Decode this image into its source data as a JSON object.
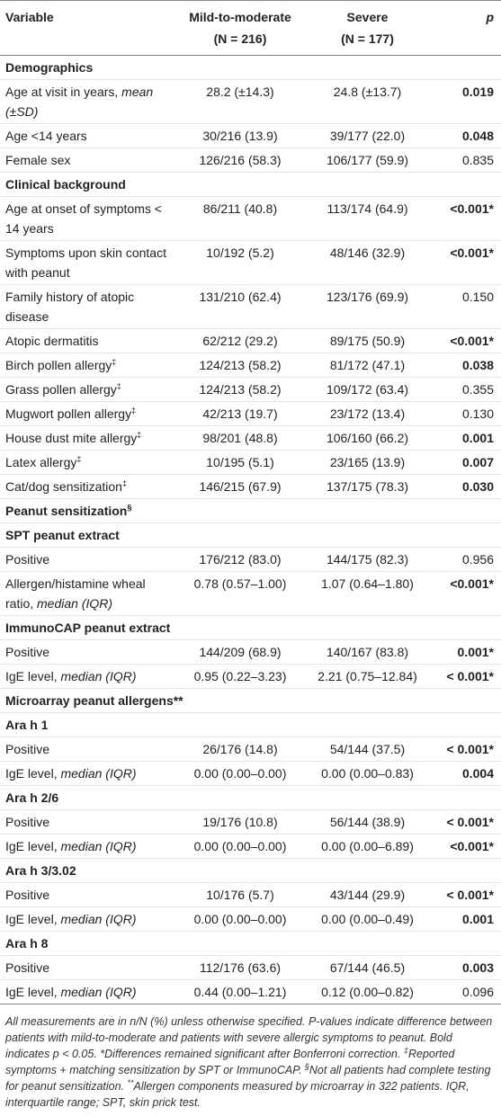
{
  "table": {
    "header": {
      "variable": "Variable",
      "mild": [
        "Mild-to-moderate",
        "(N = 216)"
      ],
      "severe": [
        "Severe",
        "(N = 177)"
      ],
      "p": "p"
    },
    "rows": [
      {
        "section": "Demographics"
      },
      {
        "label": "Age at visit in years, ",
        "em": "mean (±SD)",
        "mild": "28.2 (±14.3)",
        "severe": "24.8 (±13.7)",
        "p": "0.019",
        "bold": true
      },
      {
        "label": "Age <14 years",
        "mild": "30/216 (13.9)",
        "severe": "39/177 (22.0)",
        "p": "0.048",
        "bold": true
      },
      {
        "label": "Female sex",
        "mild": "126/216 (58.3)",
        "severe": "106/177 (59.9)",
        "p": "0.835",
        "bold": false
      },
      {
        "section": "Clinical background"
      },
      {
        "label": "Age at onset of symptoms < 14 years",
        "mild": "86/211 (40.8)",
        "severe": "113/174 (64.9)",
        "p": "<0.001*",
        "bold": true
      },
      {
        "label": "Symptoms upon skin contact with peanut",
        "mild": "10/192 (5.2)",
        "severe": "48/146 (32.9)",
        "p": "<0.001*",
        "bold": true
      },
      {
        "label": "Family history of atopic disease",
        "mild": "131/210 (62.4)",
        "severe": "123/176 (69.9)",
        "p": "0.150",
        "bold": false
      },
      {
        "label": "Atopic dermatitis",
        "mild": "62/212 (29.2)",
        "severe": "89/175 (50.9)",
        "p": "<0.001*",
        "bold": true
      },
      {
        "label": "Birch pollen allergy",
        "sup": "‡",
        "mild": "124/213 (58.2)",
        "severe": "81/172 (47.1)",
        "p": "0.038",
        "bold": true
      },
      {
        "label": "Grass pollen allergy",
        "sup": "‡",
        "mild": "124/213 (58.2)",
        "severe": "109/172 (63.4)",
        "p": "0.355",
        "bold": false
      },
      {
        "label": "Mugwort pollen allergy",
        "sup": "‡",
        "mild": "42/213 (19.7)",
        "severe": "23/172 (13.4)",
        "p": "0.130",
        "bold": false
      },
      {
        "label": "House dust mite allergy",
        "sup": "‡",
        "mild": "98/201 (48.8)",
        "severe": "106/160 (66.2)",
        "p": "0.001",
        "bold": true
      },
      {
        "label": "Latex allergy",
        "sup": "‡",
        "mild": "10/195 (5.1)",
        "severe": "23/165 (13.9)",
        "p": "0.007",
        "bold": true
      },
      {
        "label": "Cat/dog sensitization",
        "sup": "‡",
        "mild": "146/215 (67.9)",
        "severe": "137/175 (78.3)",
        "p": "0.030",
        "bold": true
      },
      {
        "section": "Peanut sensitization",
        "sup": "§"
      },
      {
        "section": "SPT peanut extract"
      },
      {
        "label": "Positive",
        "mild": "176/212 (83.0)",
        "severe": "144/175 (82.3)",
        "p": "0.956",
        "bold": false
      },
      {
        "label": "Allergen/histamine wheal ratio, ",
        "em": "median (IQR)",
        "mild": "0.78 (0.57–1.00)",
        "severe": "1.07 (0.64–1.80)",
        "p": "<0.001*",
        "bold": true
      },
      {
        "section": "ImmunoCAP peanut extract"
      },
      {
        "label": "Positive",
        "mild": "144/209 (68.9)",
        "severe": "140/167 (83.8)",
        "p": "0.001*",
        "bold": true
      },
      {
        "label": "IgE level, ",
        "em": "median (IQR)",
        "mild": "0.95 (0.22–3.23)",
        "severe": "2.21 (0.75–12.84)",
        "p": "< 0.001*",
        "bold": true
      },
      {
        "section": "Microarray peanut allergens**"
      },
      {
        "section": "Ara h 1"
      },
      {
        "label": "Positive",
        "mild": "26/176 (14.8)",
        "severe": "54/144 (37.5)",
        "p": "< 0.001*",
        "bold": true
      },
      {
        "label": "IgE level, ",
        "em": "median (IQR)",
        "mild": "0.00 (0.00–0.00)",
        "severe": "0.00 (0.00–0.83)",
        "p": "0.004",
        "bold": true
      },
      {
        "section": "Ara h 2/6"
      },
      {
        "label": "Positive",
        "mild": "19/176 (10.8)",
        "severe": "56/144 (38.9)",
        "p": "< 0.001*",
        "bold": true
      },
      {
        "label": "IgE level, ",
        "em": "median (IQR)",
        "mild": "0.00 (0.00–0.00)",
        "severe": "0.00 (0.00–6.89)",
        "p": "<0.001*",
        "bold": true
      },
      {
        "section": "Ara h 3/3.02"
      },
      {
        "label": "Positive",
        "mild": "10/176 (5.7)",
        "severe": "43/144 (29.9)",
        "p": "< 0.001*",
        "bold": true
      },
      {
        "label": "IgE level, ",
        "em": "median (IQR)",
        "mild": "0.00 (0.00–0.00)",
        "severe": "0.00 (0.00–0.49)",
        "p": "0.001",
        "bold": true
      },
      {
        "section": "Ara h 8"
      },
      {
        "label": "Positive",
        "mild": "112/176 (63.6)",
        "severe": "67/144 (46.5)",
        "p": "0.003",
        "bold": true
      },
      {
        "label": "IgE level, ",
        "em": "median (IQR)",
        "mild": "0.44 (0.00–1.21)",
        "severe": "0.12 (0.00–0.82)",
        "p": "0.096",
        "bold": false
      }
    ],
    "footnote": [
      {
        "text": "All measurements are in n/N (%) unless otherwise specified. P-values indicate difference between patients with mild-to-moderate and patients with severe allergic symptoms to peanut. Bold indicates p < 0.05. *Differences remained significant after Bonferroni correction. "
      },
      {
        "sup": "‡"
      },
      {
        "text": "Reported symptoms + matching sensitization by SPT or ImmunoCAP. "
      },
      {
        "sup": "§"
      },
      {
        "text": "Not all patients had complete testing for peanut sensitization. "
      },
      {
        "sup": "**"
      },
      {
        "text": "Allergen components measured by microarray in 322 patients. IQR, interquartile range; SPT, skin prick test."
      }
    ]
  }
}
